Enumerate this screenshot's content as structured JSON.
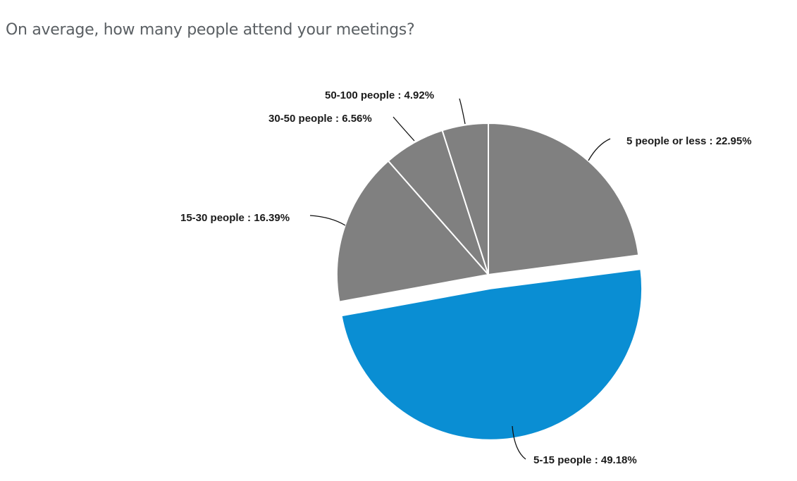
{
  "header": {
    "title": "On average, how many people attend your meetings?"
  },
  "colors": {
    "grey": "#808080",
    "blue": "#0a8ed3",
    "separator": "#ffffff",
    "leader": "#111111"
  },
  "chart_data": {
    "type": "pie",
    "title": "On average, how many people attend your meetings?",
    "start_angle": "12 o'clock, clockwise",
    "categories": [
      "5 people or less",
      "5-15 people",
      "15-30 people",
      "30-50 people",
      "50-100 people"
    ],
    "values": [
      22.95,
      49.18,
      16.39,
      6.56,
      4.92
    ],
    "exploded": [
      "5-15 people"
    ],
    "labels": [
      "5 people or less : 22.95%",
      "5-15 people : 49.18%",
      "15-30 people : 16.39%",
      "30-50 people : 6.56%",
      "50-100 people : 4.92%"
    ],
    "slice_colors": [
      "#808080",
      "#0a8ed3",
      "#808080",
      "#808080",
      "#808080"
    ],
    "legend": "none (data labels with leader lines)"
  }
}
